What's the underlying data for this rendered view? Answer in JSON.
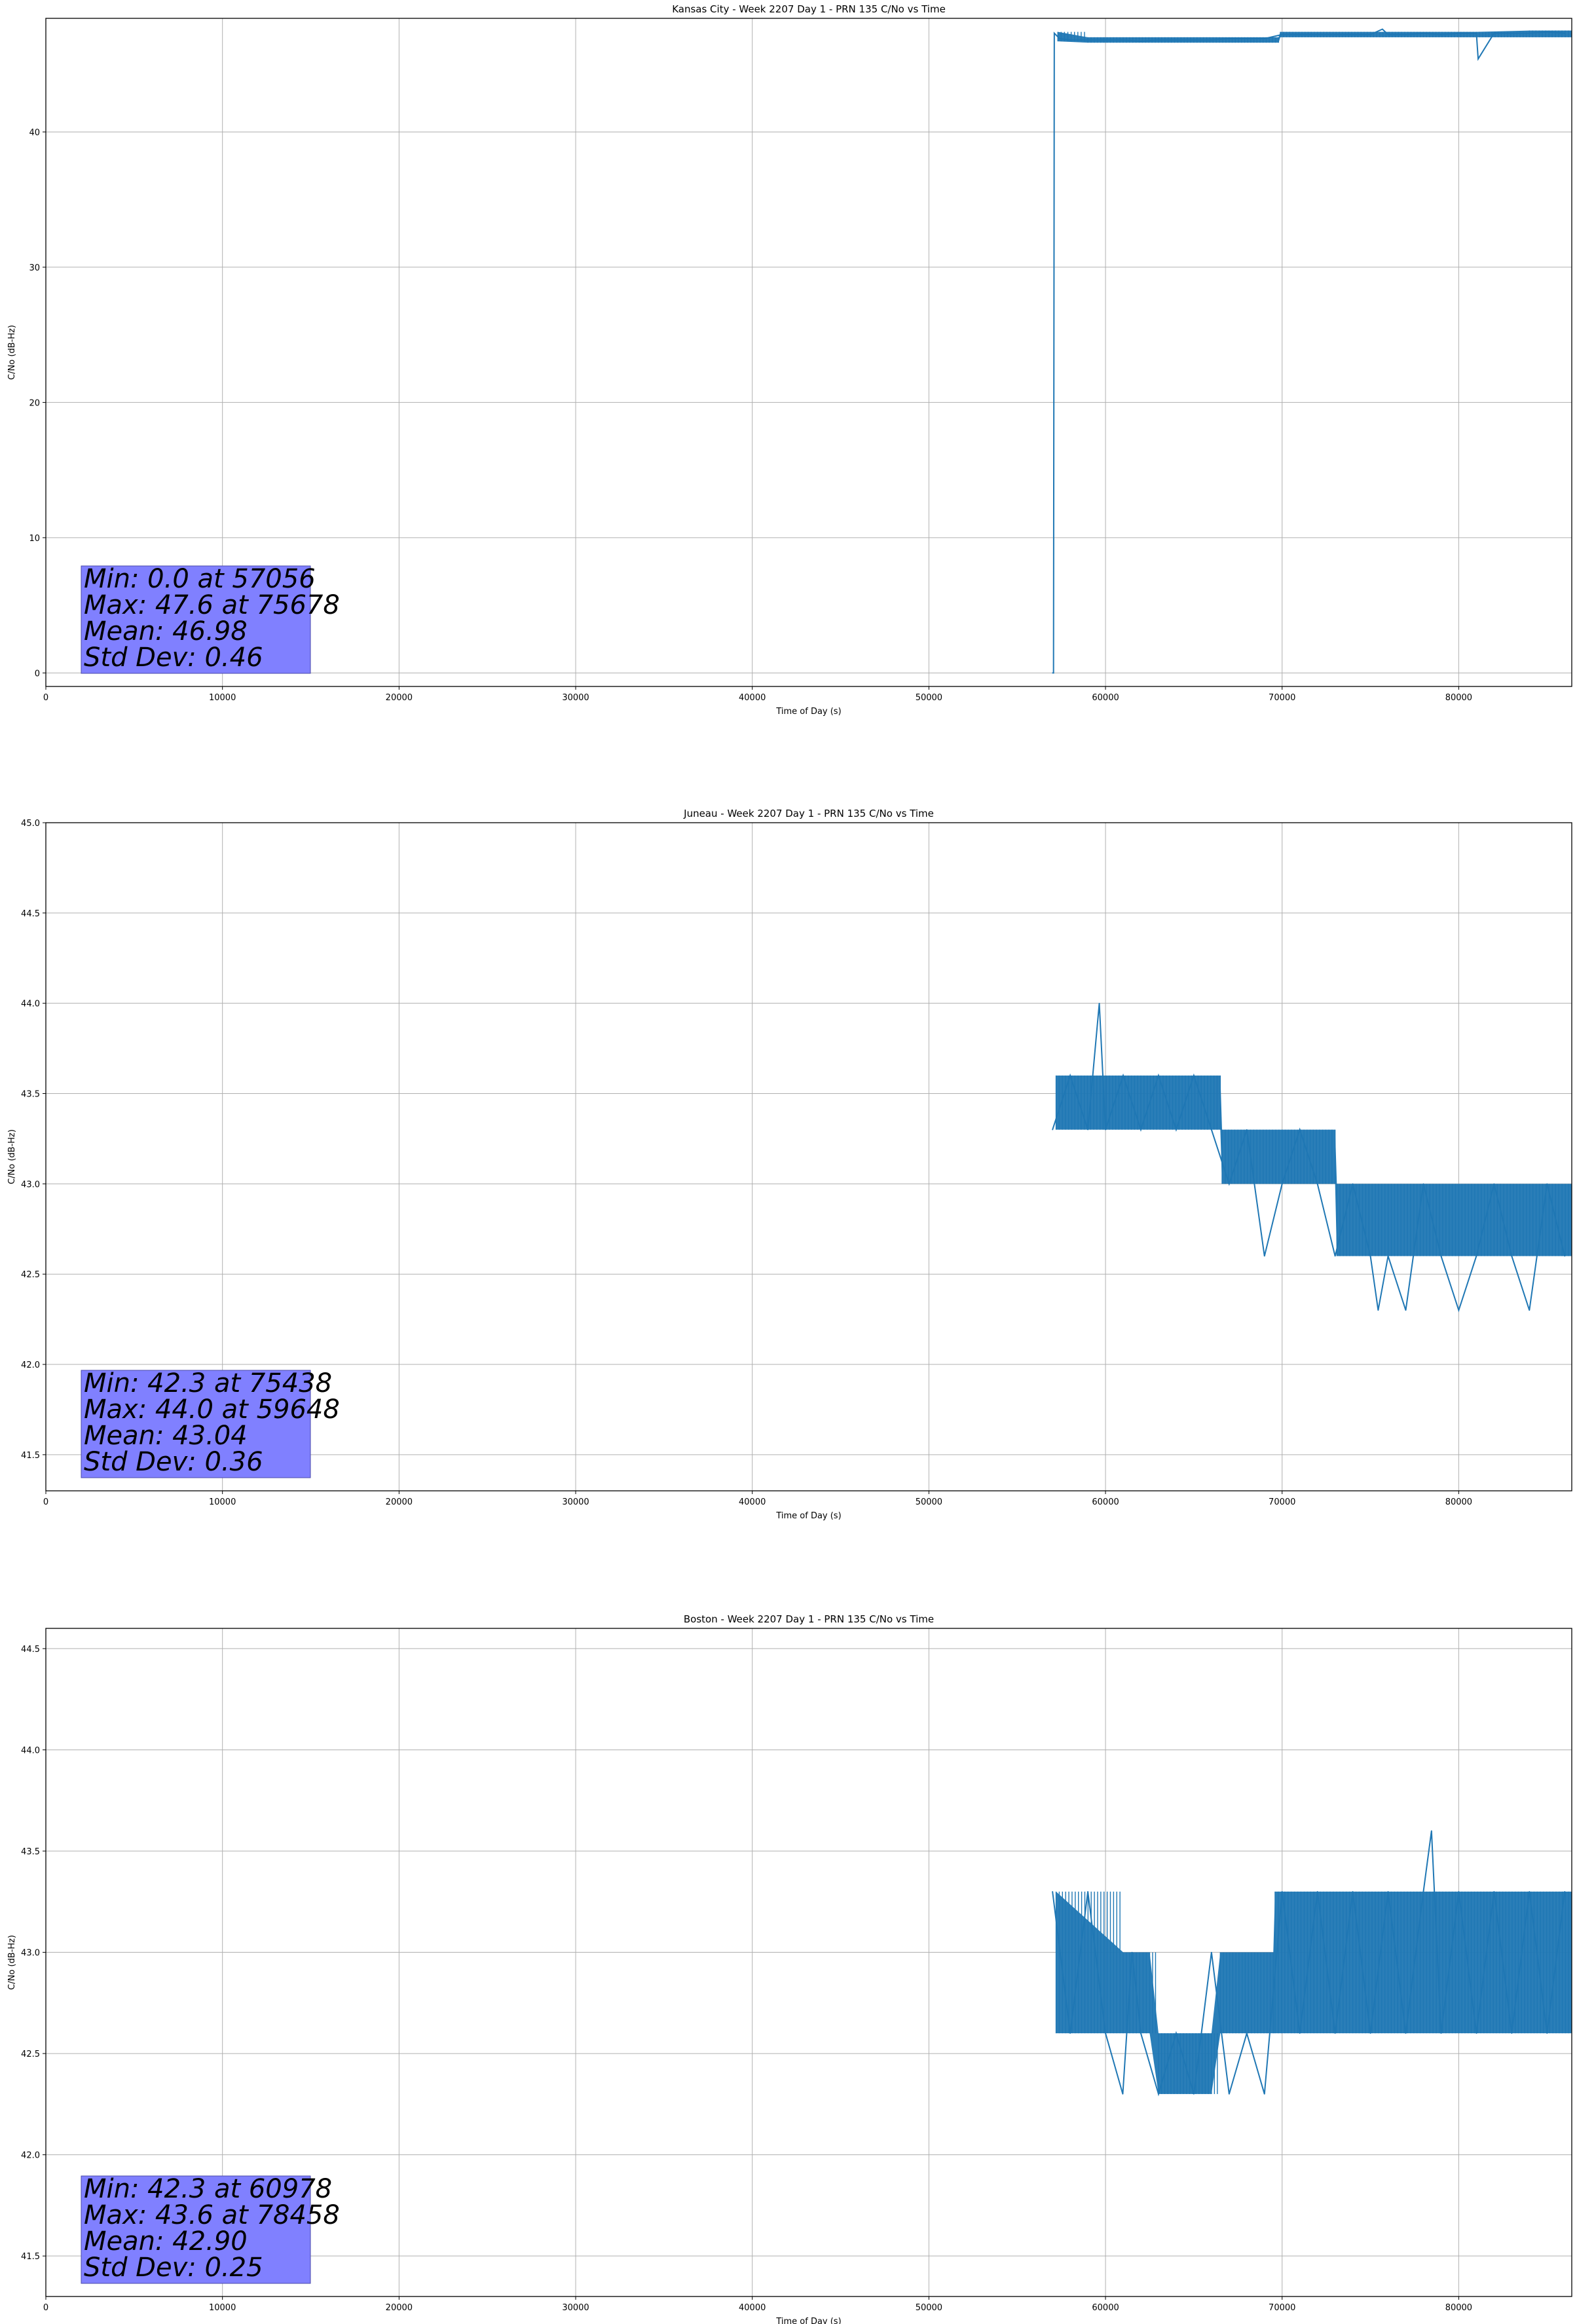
{
  "colors": {
    "series": "#1f77b4",
    "grid": "#b0b0b0",
    "statbox": "#8080ff",
    "statbox_edge": "#4a4aa8"
  },
  "chart_data": [
    {
      "type": "line",
      "title": "Kansas City - Week 2207 Day 1 - PRN 135 C/No vs Time",
      "xlabel": "Time of Day (s)",
      "ylabel": "C/No (dB-Hz)",
      "xlim": [
        0,
        86400
      ],
      "ylim": [
        -1,
        48.4
      ],
      "xticks": [
        0,
        10000,
        20000,
        30000,
        40000,
        50000,
        60000,
        70000,
        80000
      ],
      "yticks": [
        0,
        10,
        20,
        30,
        40
      ],
      "ytick_labels": [
        "0",
        "10",
        "20",
        "30",
        "40"
      ],
      "grid": true,
      "series": [
        {
          "color": "#1f77b4",
          "x": [
            57000,
            57056,
            57100,
            57400,
            58000,
            59000,
            60000,
            61000,
            62000,
            63000,
            64000,
            65000,
            66000,
            67000,
            68000,
            69000,
            70000,
            71000,
            72000,
            73000,
            74000,
            75000,
            75678,
            76000,
            77000,
            78000,
            79000,
            80000,
            81000,
            81100,
            82000,
            83000,
            84000,
            85000,
            86000
          ],
          "y": [
            0.0,
            0.0,
            47.3,
            46.9,
            46.8,
            46.8,
            46.8,
            46.8,
            46.7,
            46.8,
            46.8,
            46.8,
            46.8,
            46.9,
            46.9,
            46.9,
            47.2,
            47.2,
            47.2,
            47.2,
            47.2,
            47.2,
            47.6,
            47.2,
            47.2,
            47.3,
            47.2,
            47.3,
            47.3,
            45.4,
            47.3,
            47.3,
            47.3,
            47.4,
            47.3
          ],
          "band": [
            [
              57300,
              46.7,
              47.4
            ],
            [
              59000,
              46.6,
              47.0
            ],
            [
              61000,
              46.6,
              47.0
            ],
            [
              63000,
              46.6,
              47.0
            ],
            [
              65000,
              46.6,
              47.0
            ],
            [
              67000,
              46.6,
              47.0
            ],
            [
              69800,
              46.6,
              47.0
            ],
            [
              69900,
              47.0,
              47.4
            ],
            [
              72000,
              47.0,
              47.4
            ],
            [
              75000,
              47.0,
              47.4
            ],
            [
              78000,
              47.0,
              47.4
            ],
            [
              81000,
              47.0,
              47.4
            ],
            [
              84000,
              47.0,
              47.5
            ],
            [
              86400,
              47.0,
              47.5
            ]
          ]
        }
      ],
      "stats": {
        "line1": "Min: 0.0 at 57056",
        "line2": "Max: 47.6 at 75678",
        "line3": "Mean: 46.98",
        "line4": "Std Dev: 0.46"
      }
    },
    {
      "type": "line",
      "title": "Juneau - Week 2207 Day 1 - PRN 135 C/No vs Time",
      "xlabel": "Time of Day (s)",
      "ylabel": "C/No (dB-Hz)",
      "xlim": [
        0,
        86400
      ],
      "ylim": [
        41.3,
        45.0
      ],
      "xticks": [
        0,
        10000,
        20000,
        30000,
        40000,
        50000,
        60000,
        70000,
        80000
      ],
      "yticks": [
        41.5,
        42.0,
        42.5,
        43.0,
        43.5,
        44.0,
        44.5,
        45.0
      ],
      "ytick_labels": [
        "41.5",
        "42.0",
        "42.5",
        "43.0",
        "43.5",
        "44.0",
        "44.5",
        "45.0"
      ],
      "grid": true,
      "series": [
        {
          "color": "#1f77b4",
          "x": [
            57000,
            58000,
            59000,
            59648,
            60000,
            61000,
            62000,
            63000,
            64000,
            65000,
            66000,
            67000,
            68000,
            69000,
            70000,
            71000,
            72000,
            73000,
            74000,
            75000,
            75438,
            76000,
            77000,
            78000,
            79000,
            80000,
            81000,
            82000,
            83000,
            84000,
            85000,
            86000
          ],
          "y": [
            43.3,
            43.6,
            43.3,
            44.0,
            43.3,
            43.6,
            43.3,
            43.6,
            43.3,
            43.6,
            43.3,
            43.0,
            43.3,
            42.6,
            43.0,
            43.3,
            43.0,
            42.6,
            43.0,
            42.6,
            42.3,
            42.6,
            42.3,
            43.0,
            42.6,
            42.3,
            42.6,
            43.0,
            42.6,
            42.3,
            43.0,
            42.6
          ],
          "band": [
            [
              57200,
              43.3,
              43.6
            ],
            [
              62000,
              43.3,
              43.6
            ],
            [
              66500,
              43.3,
              43.6
            ],
            [
              66600,
              43.0,
              43.3
            ],
            [
              70000,
              43.0,
              43.3
            ],
            [
              73000,
              43.0,
              43.3
            ],
            [
              73100,
              42.6,
              43.0
            ],
            [
              78000,
              42.6,
              43.0
            ],
            [
              82000,
              42.6,
              43.0
            ],
            [
              86400,
              42.6,
              43.0
            ]
          ]
        }
      ],
      "stats": {
        "line1": "Min: 42.3 at 75438",
        "line2": "Max: 44.0 at 59648",
        "line3": "Mean: 43.04",
        "line4": "Std Dev: 0.36"
      }
    },
    {
      "type": "line",
      "title": "Boston - Week 2207 Day 1 - PRN 135 C/No vs Time",
      "xlabel": "Time of Day (s)",
      "ylabel": "C/No (dB-Hz)",
      "xlim": [
        0,
        86400
      ],
      "ylim": [
        41.3,
        44.6
      ],
      "xticks": [
        0,
        10000,
        20000,
        30000,
        40000,
        50000,
        60000,
        70000,
        80000
      ],
      "yticks": [
        41.5,
        42.0,
        42.5,
        43.0,
        43.5,
        44.0,
        44.5
      ],
      "ytick_labels": [
        "41.5",
        "42.0",
        "42.5",
        "43.0",
        "43.5",
        "44.0",
        "44.5"
      ],
      "grid": true,
      "series": [
        {
          "color": "#1f77b4",
          "x": [
            57000,
            58000,
            59000,
            60000,
            60978,
            61500,
            62000,
            63000,
            64000,
            65000,
            66000,
            67000,
            68000,
            69000,
            70000,
            71000,
            72000,
            73000,
            74000,
            75000,
            76000,
            77000,
            78000,
            78458,
            79000,
            80000,
            81000,
            82000,
            83000,
            84000,
            85000,
            86000
          ],
          "y": [
            43.3,
            42.6,
            43.3,
            42.6,
            42.3,
            43.0,
            42.6,
            42.3,
            42.6,
            42.3,
            43.0,
            42.3,
            42.6,
            42.3,
            43.3,
            42.6,
            43.3,
            42.6,
            43.3,
            42.6,
            43.3,
            42.6,
            43.3,
            43.6,
            42.6,
            43.3,
            42.6,
            43.3,
            42.6,
            43.3,
            42.6,
            43.3
          ],
          "band": [
            [
              57200,
              42.6,
              43.3
            ],
            [
              61000,
              42.6,
              43.0
            ],
            [
              62500,
              42.6,
              43.0
            ],
            [
              63000,
              42.3,
              42.6
            ],
            [
              66000,
              42.3,
              42.6
            ],
            [
              66500,
              42.6,
              43.0
            ],
            [
              69500,
              42.6,
              43.0
            ],
            [
              69600,
              42.6,
              43.3
            ],
            [
              74000,
              42.6,
              43.3
            ],
            [
              80000,
              42.6,
              43.3
            ],
            [
              86400,
              42.6,
              43.3
            ]
          ]
        }
      ],
      "stats": {
        "line1": "Min: 42.3 at 60978",
        "line2": "Max: 43.6 at 78458",
        "line3": "Mean: 42.90",
        "line4": "Std Dev: 0.25"
      }
    }
  ]
}
